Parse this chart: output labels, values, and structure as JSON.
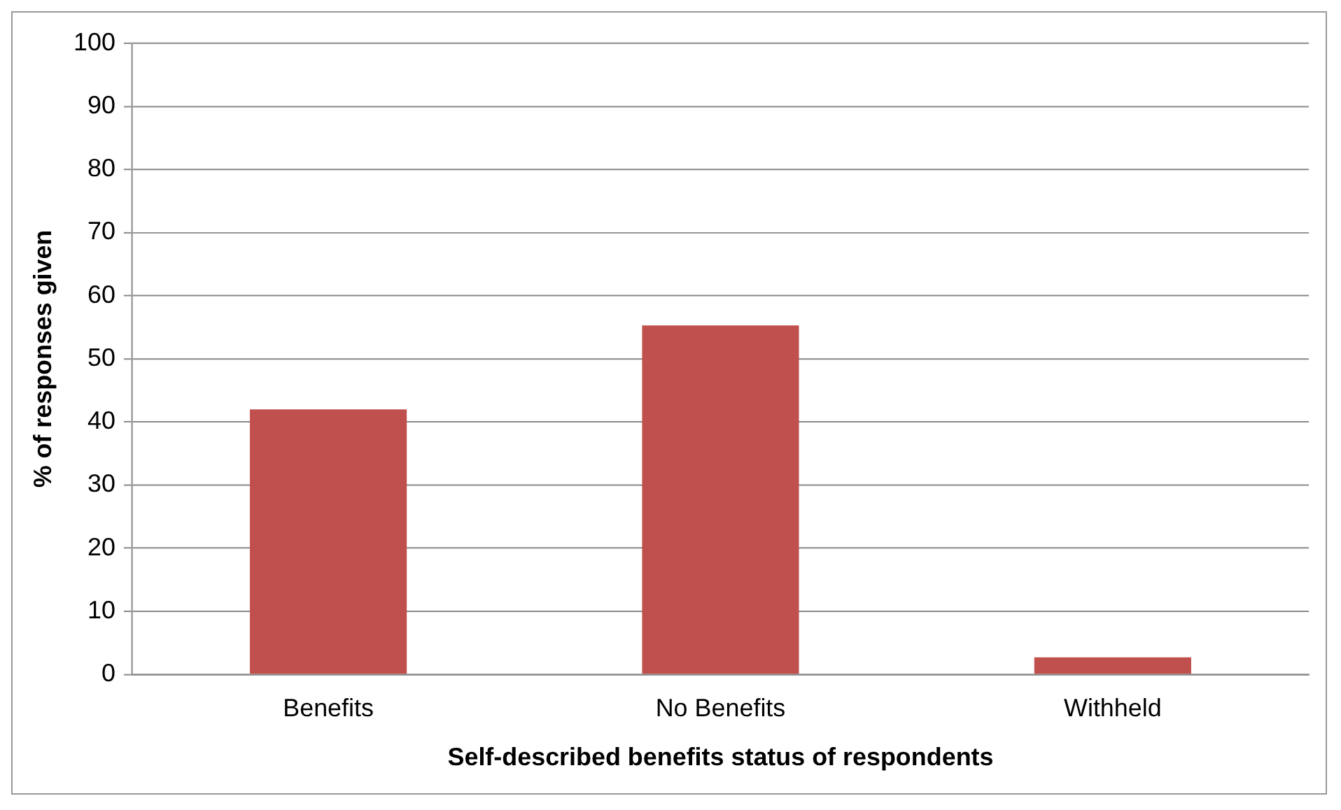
{
  "chart_data": {
    "type": "bar",
    "xlabel": "Self-described benefits status of respondents",
    "ylabel": "% of responses given",
    "categories": [
      "Benefits",
      "No Benefits",
      "Withheld"
    ],
    "values": [
      42,
      55.3,
      2.7
    ],
    "color": "#c0504d",
    "ylim": [
      0,
      100
    ],
    "yticks": [
      0,
      10,
      20,
      30,
      40,
      50,
      60,
      70,
      80,
      90,
      100
    ],
    "grid": "y",
    "legend": false
  }
}
